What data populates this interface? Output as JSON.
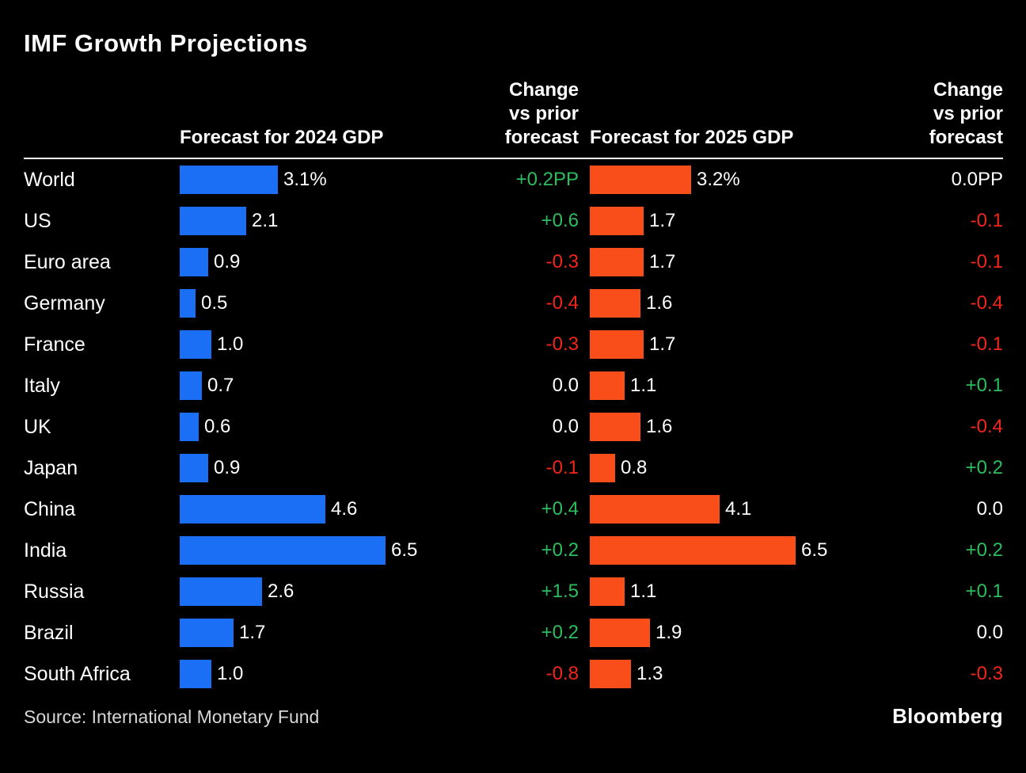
{
  "title": "IMF Growth Projections",
  "header": {
    "col_2024": "Forecast for 2024 GDP",
    "col_2025": "Forecast for 2025 GDP",
    "change_lines": [
      "Change",
      "vs prior",
      "forecast"
    ]
  },
  "footer": {
    "source": "Source: International Monetary Fund",
    "brand": "Bloomberg"
  },
  "colors": {
    "bar_2024": "#1a6ff5",
    "bar_2025": "#fa4e1a",
    "positive": "#2dbd5f",
    "negative": "#f2271c",
    "neutral": "#ffffff",
    "background": "#000000"
  },
  "rows": [
    {
      "label": "World",
      "v2024": 3.1,
      "v2024_text": "3.1%",
      "chg2024": "+0.2PP",
      "v2025": 3.2,
      "v2025_text": "3.2%",
      "chg2025": "0.0PP"
    },
    {
      "label": "US",
      "v2024": 2.1,
      "v2024_text": "2.1",
      "chg2024": "+0.6",
      "v2025": 1.7,
      "v2025_text": "1.7",
      "chg2025": "-0.1"
    },
    {
      "label": "Euro area",
      "v2024": 0.9,
      "v2024_text": "0.9",
      "chg2024": "-0.3",
      "v2025": 1.7,
      "v2025_text": "1.7",
      "chg2025": "-0.1"
    },
    {
      "label": "Germany",
      "v2024": 0.5,
      "v2024_text": "0.5",
      "chg2024": "-0.4",
      "v2025": 1.6,
      "v2025_text": "1.6",
      "chg2025": "-0.4"
    },
    {
      "label": "France",
      "v2024": 1.0,
      "v2024_text": "1.0",
      "chg2024": "-0.3",
      "v2025": 1.7,
      "v2025_text": "1.7",
      "chg2025": "-0.1"
    },
    {
      "label": "Italy",
      "v2024": 0.7,
      "v2024_text": "0.7",
      "chg2024": "0.0",
      "v2025": 1.1,
      "v2025_text": "1.1",
      "chg2025": "+0.1"
    },
    {
      "label": "UK",
      "v2024": 0.6,
      "v2024_text": "0.6",
      "chg2024": "0.0",
      "v2025": 1.6,
      "v2025_text": "1.6",
      "chg2025": "-0.4"
    },
    {
      "label": "Japan",
      "v2024": 0.9,
      "v2024_text": "0.9",
      "chg2024": "-0.1",
      "v2025": 0.8,
      "v2025_text": "0.8",
      "chg2025": "+0.2"
    },
    {
      "label": "China",
      "v2024": 4.6,
      "v2024_text": "4.6",
      "chg2024": "+0.4",
      "v2025": 4.1,
      "v2025_text": "4.1",
      "chg2025": "0.0"
    },
    {
      "label": "India",
      "v2024": 6.5,
      "v2024_text": "6.5",
      "chg2024": "+0.2",
      "v2025": 6.5,
      "v2025_text": "6.5",
      "chg2025": "+0.2"
    },
    {
      "label": "Russia",
      "v2024": 2.6,
      "v2024_text": "2.6",
      "chg2024": "+1.5",
      "v2025": 1.1,
      "v2025_text": "1.1",
      "chg2025": "+0.1"
    },
    {
      "label": "Brazil",
      "v2024": 1.7,
      "v2024_text": "1.7",
      "chg2024": "+0.2",
      "v2025": 1.9,
      "v2025_text": "1.9",
      "chg2025": "0.0"
    },
    {
      "label": "South Africa",
      "v2024": 1.0,
      "v2024_text": "1.0",
      "chg2024": "-0.8",
      "v2025": 1.3,
      "v2025_text": "1.3",
      "chg2025": "-0.3"
    }
  ],
  "chart_data": {
    "type": "bar",
    "orientation": "horizontal",
    "title": "IMF Growth Projections",
    "categories": [
      "World",
      "US",
      "Euro area",
      "Germany",
      "France",
      "Italy",
      "UK",
      "Japan",
      "China",
      "India",
      "Russia",
      "Brazil",
      "South Africa"
    ],
    "series": [
      {
        "name": "Forecast for 2024 GDP",
        "unit": "%",
        "color": "#1a6ff5",
        "values": [
          3.1,
          2.1,
          0.9,
          0.5,
          1.0,
          0.7,
          0.6,
          0.9,
          4.6,
          6.5,
          2.6,
          1.7,
          1.0
        ]
      },
      {
        "name": "Change vs prior forecast (2024)",
        "unit": "PP",
        "values": [
          0.2,
          0.6,
          -0.3,
          -0.4,
          -0.3,
          0.0,
          0.0,
          -0.1,
          0.4,
          0.2,
          1.5,
          0.2,
          -0.8
        ]
      },
      {
        "name": "Forecast for 2025 GDP",
        "unit": "%",
        "color": "#fa4e1a",
        "values": [
          3.2,
          1.7,
          1.7,
          1.6,
          1.7,
          1.1,
          1.6,
          0.8,
          4.1,
          6.5,
          1.1,
          1.9,
          1.3
        ]
      },
      {
        "name": "Change vs prior forecast (2025)",
        "unit": "PP",
        "values": [
          0.0,
          -0.1,
          -0.1,
          -0.4,
          -0.1,
          0.1,
          -0.4,
          0.2,
          0.0,
          0.2,
          0.1,
          0.0,
          -0.3
        ]
      }
    ],
    "xlim": [
      0,
      7
    ],
    "grid": false,
    "legend_position": "none",
    "source": "Source: International Monetary Fund"
  }
}
